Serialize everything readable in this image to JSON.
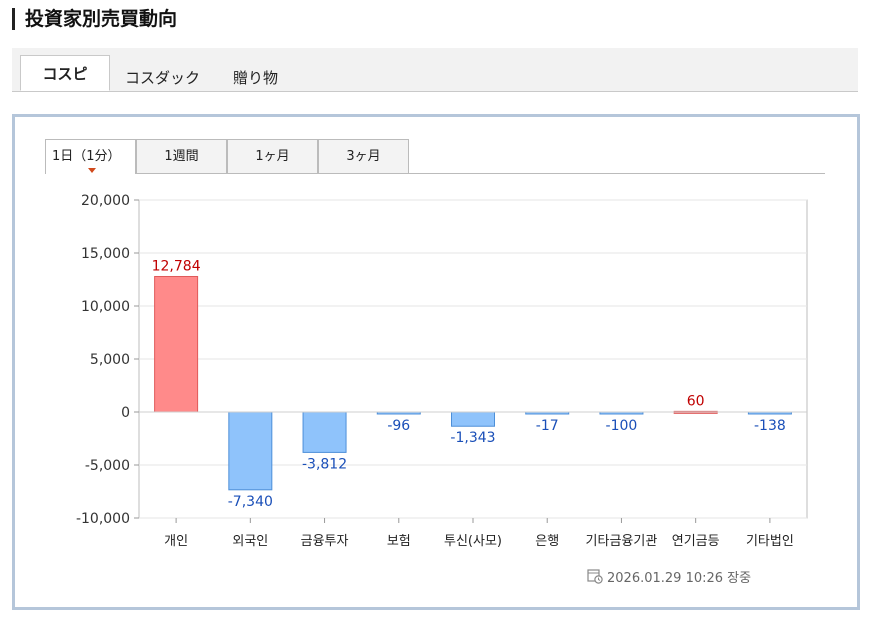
{
  "page": {
    "title": "投資家別売買動向"
  },
  "market_tabs": [
    {
      "label": "コスピ",
      "active": true
    },
    {
      "label": "コスダック",
      "active": false
    },
    {
      "label": "贈り物",
      "active": false
    }
  ],
  "period_tabs": [
    {
      "label": "1日（1分）",
      "active": true
    },
    {
      "label": "1週間",
      "active": false
    },
    {
      "label": "1ヶ月",
      "active": false
    },
    {
      "label": "3ヶ月",
      "active": false
    }
  ],
  "chart_data": {
    "type": "bar",
    "categories": [
      "개인",
      "외국인",
      "금융투자",
      "보험",
      "투신(사모)",
      "은행",
      "기타금융기관",
      "연기금등",
      "기타법인"
    ],
    "values": [
      12784,
      -7340,
      -3812,
      -96,
      -1343,
      -17,
      -100,
      60,
      -138
    ],
    "value_labels": [
      "12,784",
      "-7,340",
      "-3,812",
      "-96",
      "-1,343",
      "-17",
      "-100",
      "60",
      "-138"
    ],
    "y_ticks": [
      20000,
      15000,
      10000,
      5000,
      0,
      -5000,
      -10000
    ],
    "y_tick_labels": [
      "20,000",
      "15,000",
      "10,000",
      "5,000",
      "0",
      "-5,000",
      "-10,000"
    ],
    "ylim": [
      -10000,
      20000
    ],
    "grid": true,
    "colors": {
      "positive_fill": "#ff8a8a",
      "positive_stroke": "#e05a5a",
      "negative_fill": "#8fc3fb",
      "negative_stroke": "#4d8fd8",
      "positive_text": "#c00000",
      "negative_text": "#1a4fb8"
    }
  },
  "timestamp": {
    "text": "2026.01.29 10:26 장중",
    "icon": "clock-icon"
  }
}
